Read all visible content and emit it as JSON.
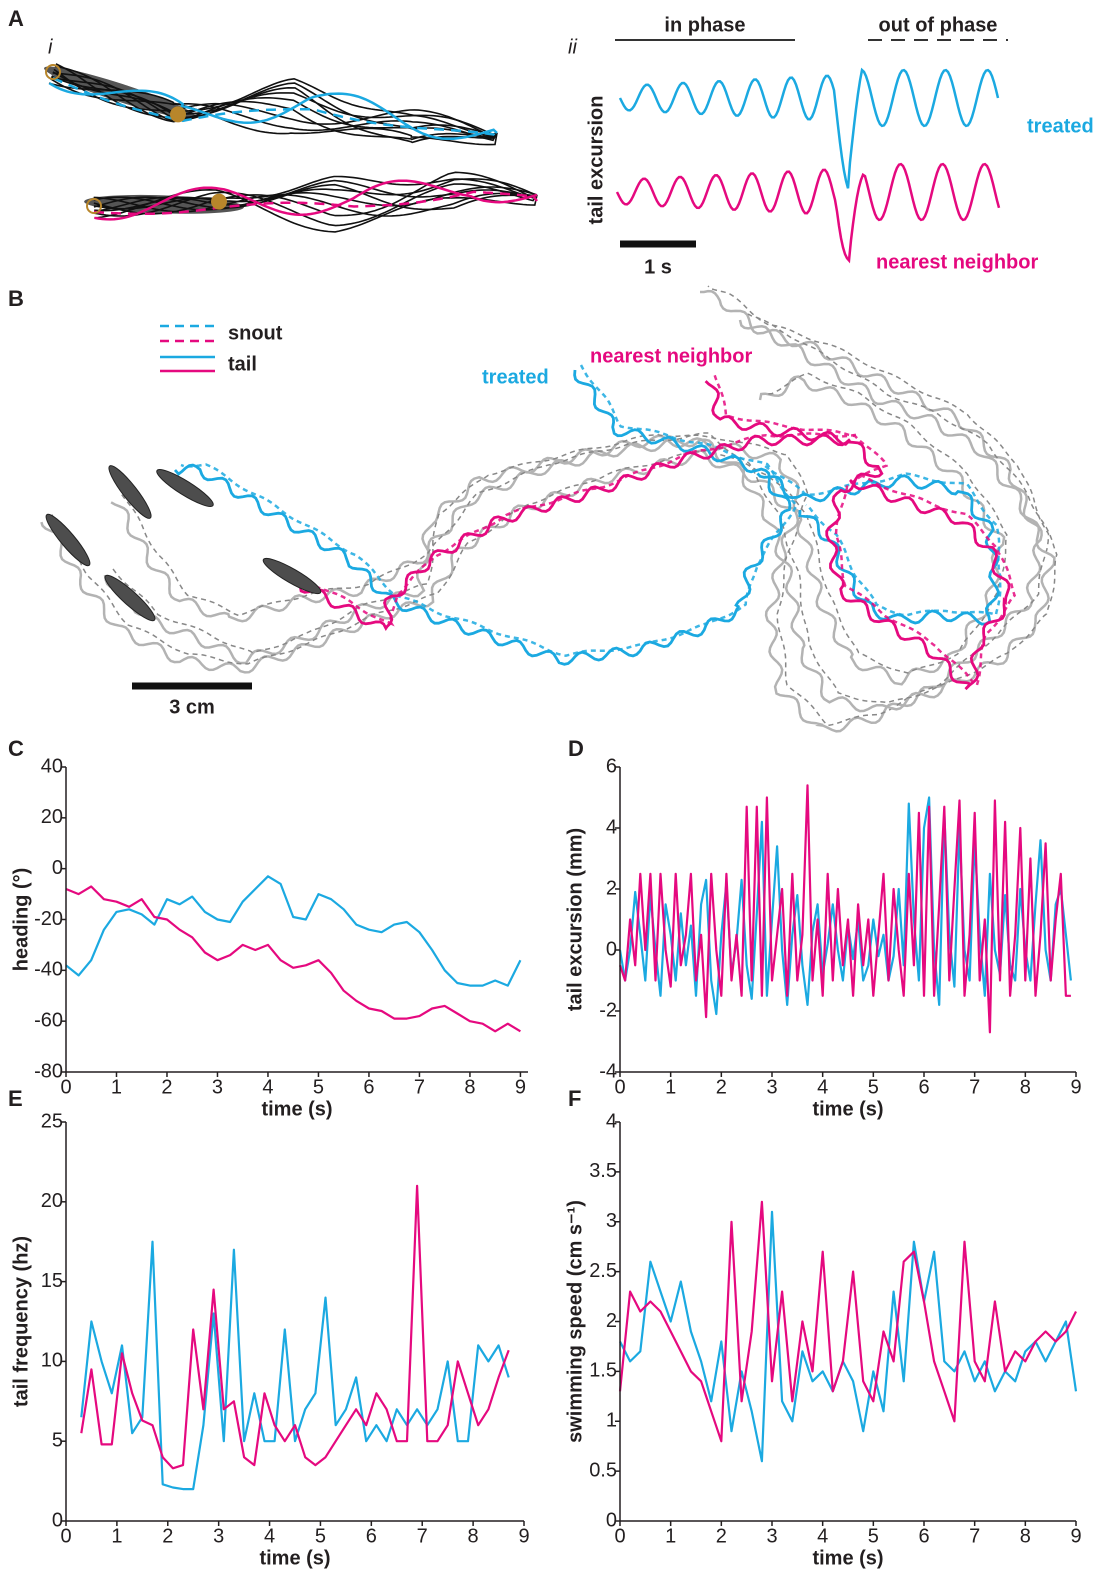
{
  "panel_a": {
    "label": "A",
    "sub_i": "i",
    "sub_ii": "ii",
    "in_phase": "in phase",
    "out_of_phase": "out of phase",
    "y_label": "tail excursion",
    "treated": "treated",
    "nearest_neighbor": "nearest neighbor",
    "scale": "1 s"
  },
  "panel_b": {
    "label": "B",
    "legend": [
      "snout",
      "tail"
    ],
    "treated": "treated",
    "nearest_neighbor": "nearest neighbor",
    "scale": "3 cm"
  },
  "chart_data": [
    {
      "type": "line",
      "label": "C",
      "xlabel": "time (s)",
      "ylabel": "heading (°)",
      "x": [
        0,
        0.25,
        0.5,
        0.75,
        1,
        1.25,
        1.5,
        1.75,
        2,
        2.25,
        2.5,
        2.75,
        3,
        3.25,
        3.5,
        3.75,
        4,
        4.25,
        4.5,
        4.75,
        5,
        5.25,
        5.5,
        5.75,
        6,
        6.25,
        6.5,
        6.75,
        7,
        7.25,
        7.5,
        7.75,
        8,
        8.25,
        8.5,
        8.75,
        9
      ],
      "xlim": [
        0,
        9.15
      ],
      "xticks": [
        0,
        1,
        2,
        3,
        4,
        5,
        6,
        7,
        8,
        9
      ],
      "ylim": [
        -80,
        40
      ],
      "yticks": [
        -80,
        -60,
        -40,
        -20,
        0,
        20,
        40
      ],
      "series": [
        {
          "color": "#1ba9e1",
          "values": [
            -38,
            -42,
            -36,
            -24,
            -17,
            -16,
            -18,
            -22,
            -12,
            -14,
            -11,
            -17,
            -20,
            -21,
            -13,
            -8,
            -3,
            -6,
            -19,
            -20,
            -10,
            -12,
            -16,
            -22,
            -24,
            -25,
            -22,
            -21,
            -25,
            -32,
            -40,
            -45,
            -46,
            -46,
            -44,
            -46,
            -36
          ]
        },
        {
          "color": "#e5097f",
          "values": [
            -8,
            -10,
            -7,
            -12,
            -13,
            -15,
            -12,
            -19,
            -20,
            -24,
            -27,
            -33,
            -36,
            -34,
            -30,
            -32,
            -30,
            -36,
            -39,
            -38,
            -36,
            -41,
            -48,
            -52,
            -55,
            -56,
            -59,
            -59,
            -58,
            -55,
            -54,
            -57,
            -60,
            -61,
            -64,
            -61,
            -64
          ]
        }
      ]
    },
    {
      "type": "line",
      "label": "D",
      "xlabel": "time (s)",
      "ylabel": "tail excursion (mm)",
      "x": [
        0,
        0.1,
        0.2,
        0.3,
        0.4,
        0.5,
        0.6,
        0.7,
        0.8,
        0.9,
        1,
        1.1,
        1.2,
        1.3,
        1.4,
        1.5,
        1.6,
        1.7,
        1.8,
        1.9,
        2,
        2.1,
        2.2,
        2.3,
        2.4,
        2.5,
        2.6,
        2.7,
        2.8,
        2.9,
        3,
        3.1,
        3.2,
        3.3,
        3.4,
        3.5,
        3.6,
        3.7,
        3.8,
        3.9,
        4,
        4.1,
        4.2,
        4.3,
        4.4,
        4.5,
        4.6,
        4.7,
        4.8,
        4.9,
        5,
        5.1,
        5.2,
        5.3,
        5.4,
        5.5,
        5.6,
        5.7,
        5.8,
        5.9,
        6,
        6.1,
        6.2,
        6.3,
        6.4,
        6.5,
        6.6,
        6.7,
        6.8,
        6.9,
        7,
        7.1,
        7.2,
        7.3,
        7.4,
        7.5,
        7.6,
        7.7,
        7.8,
        7.9,
        8,
        8.1,
        8.2,
        8.3,
        8.4,
        8.5,
        8.6,
        8.7,
        8.8,
        8.9
      ],
      "xlim": [
        0,
        9
      ],
      "xticks": [
        0,
        1,
        2,
        3,
        4,
        5,
        6,
        7,
        8,
        9
      ],
      "ylim": [
        -4,
        6
      ],
      "yticks": [
        -4,
        -2,
        0,
        2,
        4,
        6
      ],
      "series": [
        {
          "color": "#1ba9e1",
          "values": [
            0,
            -1,
            0,
            1.9,
            0.5,
            -1,
            1.8,
            0,
            -1.5,
            1.5,
            0.5,
            -1,
            1.2,
            -0.5,
            0.8,
            -1.5,
            1.5,
            2.3,
            -1,
            -2.1,
            0.5,
            2.2,
            -0.8,
            0.3,
            2.3,
            -0.5,
            -1.6,
            1.2,
            4.2,
            -1.5,
            1,
            3.4,
            0,
            -1.8,
            0.5,
            1.8,
            -0.5,
            -1.8,
            0.6,
            1.5,
            -0.8,
            0.2,
            1.5,
            0,
            -1,
            0.8,
            -0.3,
            1,
            -1,
            -0.5,
            1,
            -0.2,
            0.5,
            -1,
            -0.2,
            2,
            -0.5,
            4.8,
            1,
            -1,
            4,
            5,
            0,
            -1.8,
            4.5,
            0.5,
            -1.2,
            4,
            0,
            -1,
            3.6,
            0.5,
            -1.5,
            2.5,
            0,
            -0.8,
            1.8,
            -0.5,
            -1,
            2,
            0,
            -1,
            1.5,
            3.6,
            0,
            -1,
            1.5,
            2,
            0.5,
            -1
          ]
        },
        {
          "color": "#e5097f",
          "values": [
            -0.5,
            -1,
            1,
            -0.5,
            2.5,
            0,
            2.5,
            -1,
            2.5,
            0,
            -1.2,
            2.5,
            -0.5,
            0.5,
            2.5,
            -1,
            0.5,
            -2.2,
            2.5,
            0,
            -1.5,
            2.5,
            -1,
            0.5,
            -1.5,
            4.7,
            -1,
            4.7,
            -1.5,
            5,
            -1,
            0.5,
            2,
            -1.5,
            2.5,
            -1,
            0.5,
            5.4,
            -1,
            1,
            -1.5,
            2.5,
            -1,
            2,
            -0.5,
            1,
            -1.5,
            1.5,
            -0.5,
            1,
            -1.5,
            0.5,
            2.5,
            -1,
            2,
            0,
            -1.5,
            2.5,
            -0.5,
            4.5,
            -1.5,
            4.7,
            -1.5,
            1.5,
            4.7,
            -1,
            2,
            4.9,
            -1.5,
            0.5,
            4.5,
            -1,
            1,
            -2.7,
            4.9,
            -1,
            4.2,
            -1.5,
            0.5,
            4,
            -1,
            3,
            -1.5,
            0.5,
            3.5,
            -1,
            1,
            2.5,
            -1.5,
            -1.5
          ]
        }
      ]
    },
    {
      "type": "line",
      "label": "E",
      "xlabel": "time (s)",
      "ylabel": "tail frequency (hz)",
      "x": [
        0.3,
        0.5,
        0.7,
        0.9,
        1.1,
        1.3,
        1.5,
        1.7,
        1.9,
        2.1,
        2.3,
        2.5,
        2.7,
        2.9,
        3.1,
        3.3,
        3.5,
        3.7,
        3.9,
        4.1,
        4.3,
        4.5,
        4.7,
        4.9,
        5.1,
        5.3,
        5.5,
        5.7,
        5.9,
        6.1,
        6.3,
        6.5,
        6.7,
        6.9,
        7.1,
        7.3,
        7.5,
        7.7,
        7.9,
        8.1,
        8.3,
        8.5,
        8.7
      ],
      "xlim": [
        0,
        9
      ],
      "xticks": [
        0,
        1,
        2,
        3,
        4,
        5,
        6,
        7,
        8,
        9
      ],
      "ylim": [
        0,
        25
      ],
      "yticks": [
        0,
        5,
        10,
        15,
        20,
        25
      ],
      "series": [
        {
          "color": "#1ba9e1",
          "values": [
            6.5,
            12.5,
            10,
            8,
            11,
            5.5,
            6.5,
            17.5,
            2.3,
            2.1,
            2,
            2,
            6,
            13,
            5,
            17,
            5,
            8,
            5,
            5,
            12,
            5,
            7,
            8,
            14,
            6,
            7,
            9,
            5,
            6,
            5,
            7,
            6,
            7,
            6,
            7,
            10,
            5,
            5,
            11,
            10,
            11,
            9
          ]
        },
        {
          "color": "#e5097f",
          "values": [
            5.5,
            9.5,
            4.8,
            4.8,
            10.5,
            8,
            6.3,
            6,
            4,
            3.3,
            3.5,
            12,
            7,
            14.5,
            7,
            7.5,
            4,
            3.5,
            8,
            6,
            5,
            6,
            4,
            3.5,
            4,
            5,
            6,
            7,
            6,
            8,
            7,
            5,
            5,
            21,
            5,
            5,
            6,
            10,
            8,
            6,
            7,
            9,
            10.7
          ]
        }
      ]
    },
    {
      "type": "line",
      "label": "F",
      "xlabel": "time (s)",
      "ylabel": "swimming speed (cm s⁻¹)",
      "x": [
        0,
        0.2,
        0.4,
        0.6,
        0.8,
        1,
        1.2,
        1.4,
        1.6,
        1.8,
        2,
        2.2,
        2.4,
        2.6,
        2.8,
        3,
        3.2,
        3.4,
        3.6,
        3.8,
        4,
        4.2,
        4.4,
        4.6,
        4.8,
        5,
        5.2,
        5.4,
        5.6,
        5.8,
        6,
        6.2,
        6.4,
        6.6,
        6.8,
        7,
        7.2,
        7.4,
        7.6,
        7.8,
        8,
        8.2,
        8.4,
        8.6,
        8.8,
        9
      ],
      "xlim": [
        0,
        9
      ],
      "xticks": [
        0,
        1,
        2,
        3,
        4,
        5,
        6,
        7,
        8,
        9
      ],
      "ylim": [
        0,
        4
      ],
      "yticks": [
        0,
        0.5,
        1,
        1.5,
        2,
        2.5,
        3,
        3.5,
        4
      ],
      "series": [
        {
          "color": "#1ba9e1",
          "values": [
            1.8,
            1.6,
            1.7,
            2.6,
            2.3,
            2.0,
            2.4,
            1.9,
            1.6,
            1.2,
            1.8,
            0.9,
            1.5,
            1.1,
            0.6,
            3.1,
            1.2,
            1.0,
            1.7,
            1.4,
            1.5,
            1.3,
            1.6,
            1.4,
            0.9,
            1.5,
            1.1,
            2.3,
            1.4,
            2.8,
            2.2,
            2.7,
            1.6,
            1.5,
            1.7,
            1.4,
            1.6,
            1.3,
            1.5,
            1.4,
            1.7,
            1.8,
            1.6,
            1.8,
            2.0,
            1.3
          ]
        },
        {
          "color": "#e5097f",
          "values": [
            1.3,
            2.3,
            2.1,
            2.2,
            2.1,
            1.9,
            1.7,
            1.5,
            1.4,
            1.1,
            0.8,
            3.0,
            1.2,
            1.9,
            3.2,
            1.4,
            2.3,
            1.2,
            2.0,
            1.5,
            2.7,
            1.3,
            1.6,
            2.5,
            1.4,
            1.2,
            1.9,
            1.6,
            2.6,
            2.7,
            2.2,
            1.6,
            1.3,
            1.0,
            2.8,
            1.6,
            1.4,
            2.2,
            1.5,
            1.7,
            1.6,
            1.8,
            1.9,
            1.8,
            1.9,
            2.1
          ]
        }
      ]
    }
  ]
}
